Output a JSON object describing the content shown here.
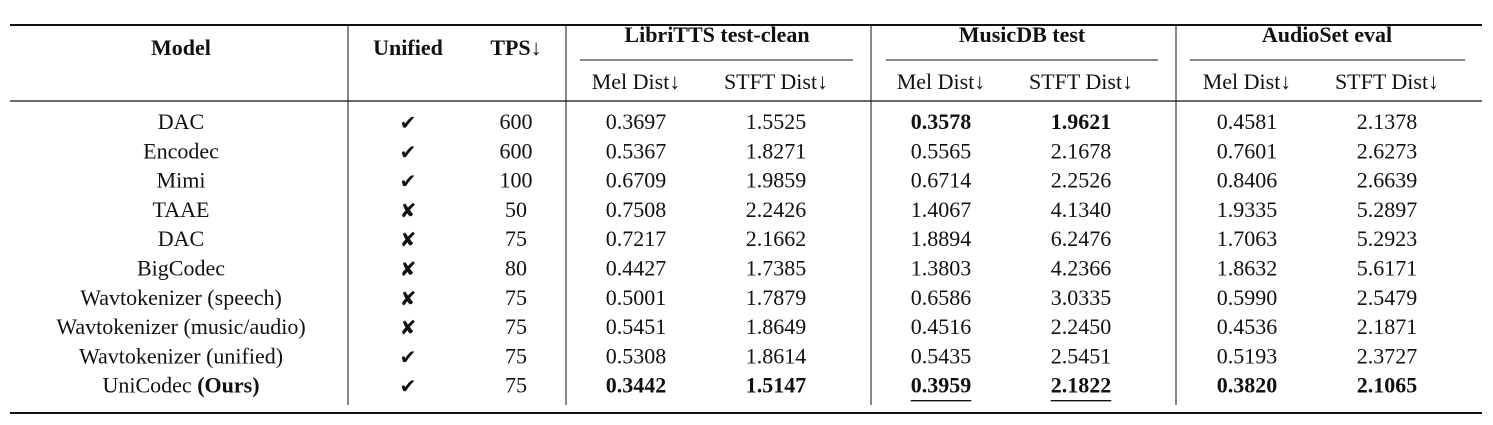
{
  "header": {
    "columns": [
      "Model",
      "Unified",
      "TPS↓"
    ],
    "groups": [
      {
        "title": "LibriTTS test-clean",
        "subcolumns": [
          "Mel Dist↓",
          "STFT Dist↓"
        ]
      },
      {
        "title": "MusicDB test",
        "subcolumns": [
          "Mel Dist↓",
          "STFT Dist↓"
        ]
      },
      {
        "title": "AudioSet eval",
        "subcolumns": [
          "Mel Dist↓",
          "STFT Dist↓"
        ]
      }
    ]
  },
  "rows": [
    {
      "model": "DAC",
      "unified": "✔",
      "tps": "600",
      "values": [
        "0.3697",
        "1.5525",
        "0.3578",
        "1.9621",
        "0.4581",
        "2.1378"
      ],
      "bold": [
        2,
        3
      ]
    },
    {
      "model": "Encodec",
      "unified": "✔",
      "tps": "600",
      "values": [
        "0.5367",
        "1.8271",
        "0.5565",
        "2.1678",
        "0.7601",
        "2.6273"
      ]
    },
    {
      "model": "Mimi",
      "unified": "✔",
      "tps": "100",
      "values": [
        "0.6709",
        "1.9859",
        "0.6714",
        "2.2526",
        "0.8406",
        "2.6639"
      ]
    },
    {
      "model": "TAAE",
      "unified": "✘",
      "tps": "50",
      "values": [
        "0.7508",
        "2.2426",
        "1.4067",
        "4.1340",
        "1.9335",
        "5.2897"
      ]
    },
    {
      "model": "DAC",
      "unified": "✘",
      "tps": "75",
      "values": [
        "0.7217",
        "2.1662",
        "1.8894",
        "6.2476",
        "1.7063",
        "5.2923"
      ]
    },
    {
      "model": "BigCodec",
      "unified": "✘",
      "tps": "80",
      "values": [
        "0.4427",
        "1.7385",
        "1.3803",
        "4.2366",
        "1.8632",
        "5.6171"
      ]
    },
    {
      "model": "Wavtokenizer (speech)",
      "unified": "✘",
      "tps": "75",
      "values": [
        "0.5001",
        "1.7879",
        "0.6586",
        "3.0335",
        "0.5990",
        "2.5479"
      ]
    },
    {
      "model": "Wavtokenizer (music/audio)",
      "unified": "✘",
      "tps": "75",
      "values": [
        "0.5451",
        "1.8649",
        "0.4516",
        "2.2450",
        "0.4536",
        "2.1871"
      ]
    },
    {
      "model": "Wavtokenizer (unified)",
      "unified": "✔",
      "tps": "75",
      "values": [
        "0.5308",
        "1.8614",
        "0.5435",
        "2.5451",
        "0.5193",
        "2.3727"
      ]
    },
    {
      "model": "UniCodec",
      "model_note": "(Ours)",
      "unified": "✔",
      "tps": "75",
      "values": [
        "0.3442",
        "1.5147",
        "0.3959",
        "2.1822",
        "0.3820",
        "2.1065"
      ],
      "bold": [
        0,
        1,
        2,
        3,
        4,
        5
      ],
      "underline": [
        2,
        3
      ]
    }
  ]
}
